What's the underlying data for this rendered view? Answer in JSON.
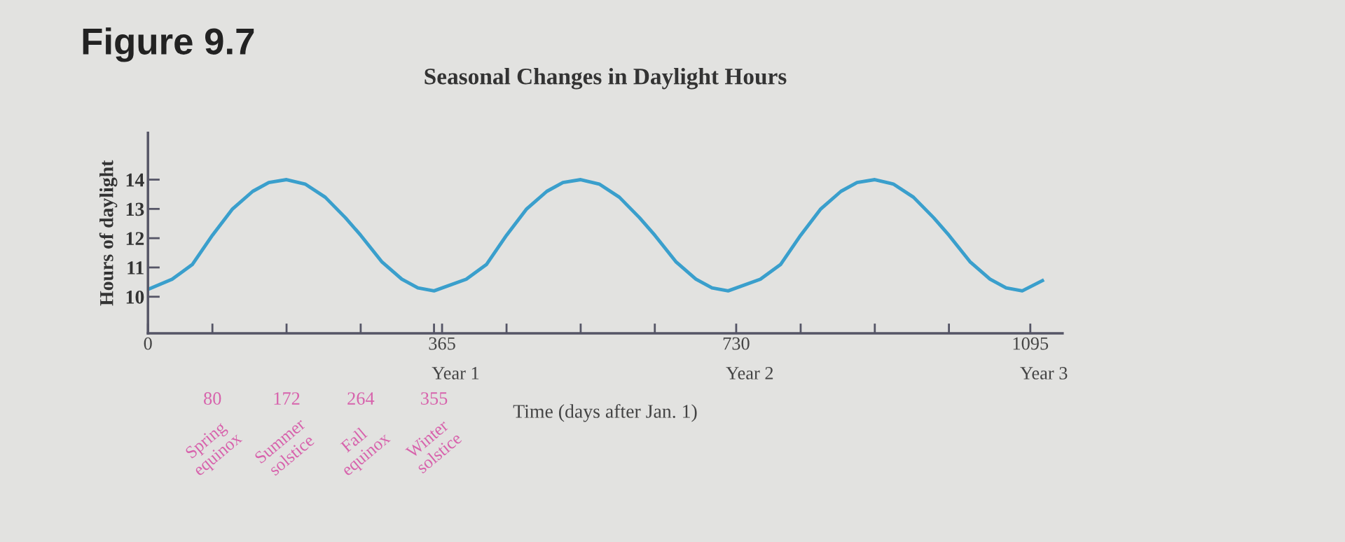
{
  "chart_data": {
    "type": "line",
    "title": "Figure 9.7",
    "subtitle": "Seasonal Changes in Daylight Hours",
    "xlabel": "Time (days after Jan. 1)",
    "ylabel": "Hours of daylight",
    "x": [
      0,
      30,
      55,
      80,
      105,
      130,
      150,
      172,
      195,
      220,
      245,
      264,
      290,
      315,
      335,
      355,
      395,
      420,
      445,
      470,
      495,
      515,
      537,
      560,
      585,
      610,
      629,
      655,
      680,
      700,
      720,
      760,
      785,
      810,
      835,
      860,
      880,
      902,
      925,
      950,
      975,
      994,
      1020,
      1045,
      1065,
      1085,
      1110
    ],
    "series": [
      {
        "color": "#3a9fcc",
        "values": [
          10.25,
          10.6,
          11.1,
          12.1,
          13.0,
          13.6,
          13.9,
          14.0,
          13.85,
          13.4,
          12.7,
          12.1,
          11.2,
          10.6,
          10.3,
          10.2,
          10.6,
          11.1,
          12.1,
          13.0,
          13.6,
          13.9,
          14.0,
          13.85,
          13.4,
          12.7,
          12.1,
          11.2,
          10.6,
          10.3,
          10.2,
          10.6,
          11.1,
          12.1,
          13.0,
          13.6,
          13.9,
          14.0,
          13.85,
          13.4,
          12.7,
          12.1,
          11.2,
          10.6,
          10.3,
          10.2,
          10.55
        ]
      }
    ],
    "xlim": [
      0,
      1135
    ],
    "ylim": [
      8.75,
      15.6
    ],
    "yticks": [
      10,
      11,
      12,
      13,
      14
    ],
    "xticks": [
      {
        "value": 0,
        "label": "0"
      },
      {
        "value": 80,
        "label": null
      },
      {
        "value": 172,
        "label": null
      },
      {
        "value": 264,
        "label": null
      },
      {
        "value": 355,
        "label": null
      },
      {
        "value": 365,
        "label": "365"
      },
      {
        "value": 445,
        "label": null
      },
      {
        "value": 537,
        "label": null
      },
      {
        "value": 629,
        "label": null
      },
      {
        "value": 730,
        "label": "730"
      },
      {
        "value": 810,
        "label": null
      },
      {
        "value": 902,
        "label": null
      },
      {
        "value": 994,
        "label": null
      },
      {
        "value": 1095,
        "label": "1095"
      }
    ],
    "annotations": [
      "80\nSpring\nequinox",
      "172\nSummer\nsolstice",
      "264\nFall\nequinox",
      "355\nWinter\nsolstice",
      "Year 1",
      "Year 2",
      "Year 3"
    ]
  }
}
